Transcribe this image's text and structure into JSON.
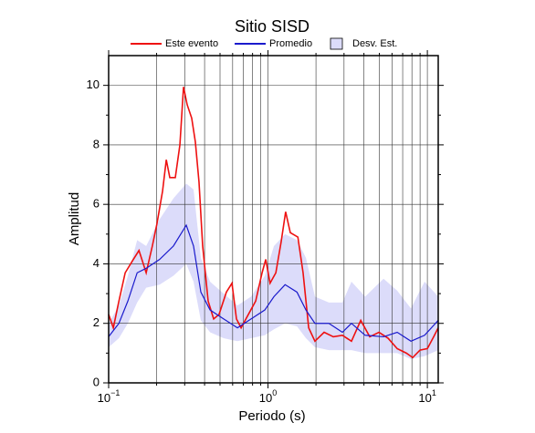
{
  "chart_data": {
    "type": "line",
    "title": "Sitio SISD",
    "xlabel": "Periodo (s)",
    "ylabel": "Amplitud",
    "xscale": "log",
    "xlim": [
      0.1,
      11.7
    ],
    "ylim": [
      0,
      11
    ],
    "xticks": [
      {
        "value": 0.1,
        "label": "10",
        "exponent": "−1"
      },
      {
        "value": 1,
        "label": "10",
        "exponent": "0"
      },
      {
        "value": 10,
        "label": "10",
        "exponent": "1"
      }
    ],
    "xminor": [
      0.2,
      0.3,
      0.4,
      0.5,
      0.6,
      0.7,
      0.8,
      0.9,
      2,
      3,
      4,
      5,
      6,
      7,
      8,
      9
    ],
    "yticks": [
      0,
      2,
      4,
      6,
      8,
      10
    ],
    "yminor": [
      1,
      3,
      5,
      7,
      9
    ],
    "grid": true,
    "band": {
      "name": "Desv. Est.",
      "color": "#dcdcfa",
      "edge": "#9090e0",
      "x": [
        0.1,
        0.116,
        0.132,
        0.151,
        0.172,
        0.209,
        0.255,
        0.307,
        0.341,
        0.379,
        0.433,
        0.527,
        0.643,
        0.783,
        0.955,
        1.09,
        1.28,
        1.52,
        1.73,
        1.97,
        2.41,
        2.93,
        3.34,
        4.07,
        5.31,
        6.47,
        7.89,
        9.61,
        11.7
      ],
      "upper": [
        2.0,
        2.6,
        3.6,
        4.8,
        4.6,
        5.5,
        6.2,
        6.7,
        6.5,
        4.2,
        3.4,
        3.0,
        2.6,
        2.9,
        3.6,
        4.6,
        5.0,
        4.8,
        4.2,
        2.9,
        2.7,
        2.7,
        3.4,
        2.9,
        3.5,
        3.1,
        2.5,
        3.4,
        2.9
      ],
      "lower": [
        1.2,
        1.5,
        2.0,
        2.7,
        3.2,
        3.3,
        3.6,
        4.0,
        3.4,
        2.1,
        1.7,
        1.5,
        1.4,
        1.5,
        1.6,
        1.8,
        2.0,
        1.9,
        1.5,
        1.2,
        1.1,
        1.1,
        1.1,
        1.0,
        1.0,
        1.0,
        0.8,
        0.9,
        1.1
      ]
    },
    "series": [
      {
        "name": "Este evento",
        "color": "#ee1111",
        "x": [
          0.1,
          0.107,
          0.116,
          0.127,
          0.141,
          0.155,
          0.172,
          0.188,
          0.201,
          0.218,
          0.23,
          0.242,
          0.262,
          0.28,
          0.295,
          0.311,
          0.332,
          0.35,
          0.369,
          0.389,
          0.421,
          0.456,
          0.493,
          0.548,
          0.594,
          0.634,
          0.678,
          0.753,
          0.837,
          0.918,
          0.968,
          1.03,
          1.12,
          1.21,
          1.29,
          1.38,
          1.54,
          1.66,
          1.8,
          1.97,
          2.25,
          2.57,
          2.93,
          3.34,
          3.82,
          4.35,
          4.97,
          5.67,
          6.47,
          7.38,
          8.09,
          8.99,
          10.0,
          10.96,
          11.7
        ],
        "values": [
          2.3,
          1.85,
          2.75,
          3.7,
          4.1,
          4.45,
          3.7,
          4.6,
          5.35,
          6.45,
          7.5,
          6.9,
          6.9,
          8.0,
          9.95,
          9.35,
          8.9,
          8.1,
          6.75,
          4.6,
          2.75,
          2.15,
          2.3,
          3.05,
          3.35,
          2.15,
          1.85,
          2.3,
          2.75,
          3.7,
          4.15,
          3.35,
          3.7,
          4.75,
          5.75,
          5.05,
          4.9,
          3.7,
          1.85,
          1.4,
          1.7,
          1.55,
          1.6,
          1.4,
          2.1,
          1.55,
          1.7,
          1.5,
          1.15,
          1.0,
          0.85,
          1.1,
          1.15,
          1.55,
          1.85
        ]
      },
      {
        "name": "Promedio",
        "color": "#1a1acc",
        "x": [
          0.1,
          0.116,
          0.132,
          0.151,
          0.172,
          0.209,
          0.255,
          0.307,
          0.341,
          0.379,
          0.433,
          0.527,
          0.643,
          0.783,
          0.955,
          1.09,
          1.28,
          1.52,
          1.73,
          1.97,
          2.41,
          2.93,
          3.34,
          4.07,
          5.31,
          6.47,
          7.89,
          9.61,
          11.7
        ],
        "values": [
          1.55,
          2.0,
          2.75,
          3.7,
          3.85,
          4.15,
          4.6,
          5.3,
          4.6,
          3.05,
          2.45,
          2.15,
          1.85,
          2.15,
          2.45,
          2.9,
          3.3,
          3.05,
          2.45,
          2.0,
          2.0,
          1.7,
          2.0,
          1.6,
          1.55,
          1.7,
          1.4,
          1.6,
          2.1
        ]
      }
    ]
  }
}
